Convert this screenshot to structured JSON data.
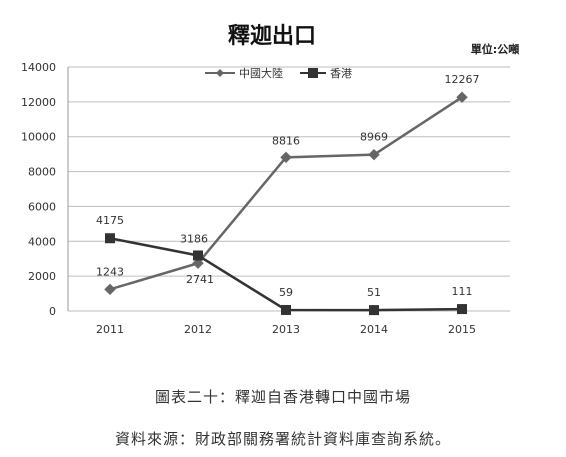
{
  "chart_data": {
    "type": "line",
    "title": "釋迦出口",
    "unit": "單位:公噸",
    "categories": [
      "2011",
      "2012",
      "2013",
      "2014",
      "2015"
    ],
    "ylim": [
      0,
      14000
    ],
    "yticks": [
      0,
      2000,
      4000,
      6000,
      8000,
      10000,
      12000,
      14000
    ],
    "grid": true,
    "legend_position": "top",
    "series": [
      {
        "name": "中國大陸",
        "values": [
          1243,
          2741,
          8816,
          8969,
          12267
        ],
        "marker": "diamond",
        "color": "#666666"
      },
      {
        "name": "香港",
        "values": [
          4175,
          3186,
          59,
          51,
          111
        ],
        "marker": "square",
        "color": "#333333"
      }
    ]
  },
  "captions": {
    "figure": "圖表二十：釋迦自香港轉口中國市場",
    "source": "資料來源：財政部關務署統計資料庫查詢系統。"
  }
}
